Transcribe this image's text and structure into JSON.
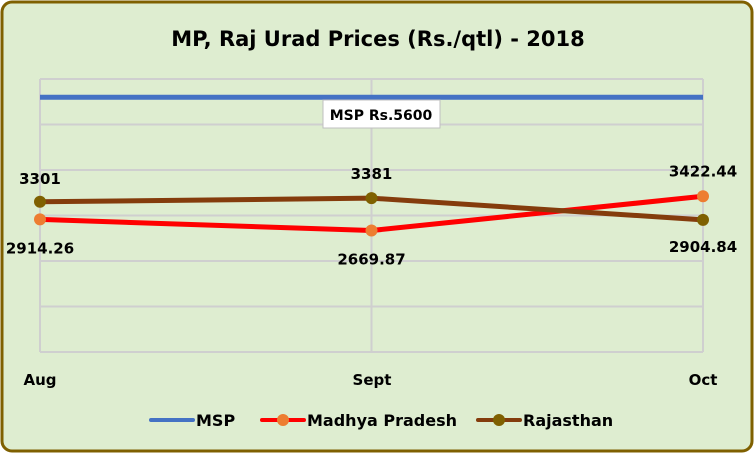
{
  "chart_data": {
    "type": "line",
    "title": "MP, Raj Urad Prices (Rs./qtl) - 2018",
    "categories": [
      "Aug",
      "Sept",
      "Oct"
    ],
    "ylim": [
      0,
      6000
    ],
    "ystep": 1000,
    "yaxis_labels_visible": false,
    "grid": true,
    "legend": "bottom",
    "series": [
      {
        "name": "MSP",
        "values": [
          5600,
          5600,
          5600
        ],
        "color": "#4472C4",
        "markers": false,
        "labels": []
      },
      {
        "name": "Madhya Pradesh",
        "values": [
          2914.26,
          2669.87,
          3422.44
        ],
        "color": "#FF0000",
        "marker_color": "#ED7D31",
        "markers": true,
        "labels": [
          "2914.26",
          "2669.87",
          "3422.44"
        ]
      },
      {
        "name": "Rajasthan",
        "values": [
          3301,
          3381,
          2904.84
        ],
        "color": "#843C0C",
        "marker_color": "#7F6000",
        "markers": true,
        "labels": [
          "3301",
          "3381",
          "2904.84"
        ]
      }
    ],
    "annotations": [
      {
        "text": "MSP Rs.5600"
      }
    ],
    "background": "#DEEDD0",
    "border_color": "#7F6000"
  }
}
